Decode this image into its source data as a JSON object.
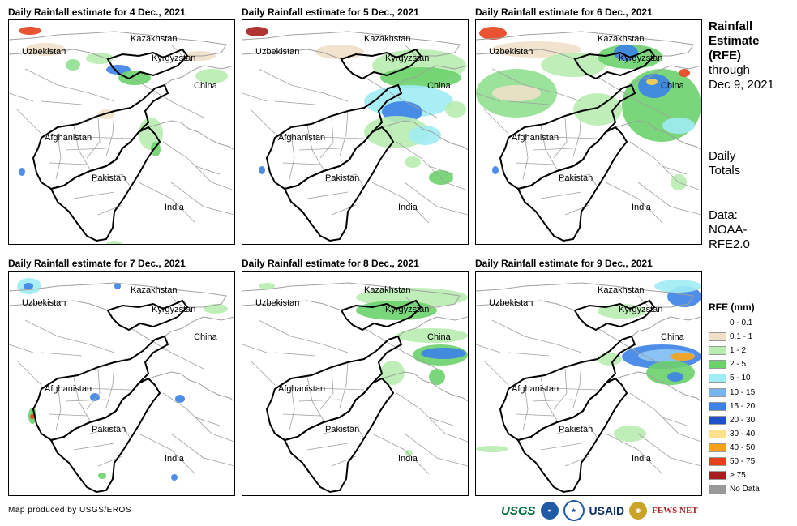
{
  "panels": [
    {
      "title": "Daily Rainfall estimate for 4 Dec., 2021",
      "rain": [
        {
          "x": 12,
          "y": 8,
          "w": 28,
          "h": 10,
          "c": "#e8401c"
        },
        {
          "x": 20,
          "y": 28,
          "w": 50,
          "h": 16,
          "c": "#f0e0c8"
        },
        {
          "x": 70,
          "y": 48,
          "w": 18,
          "h": 14,
          "c": "#90e090"
        },
        {
          "x": 95,
          "y": 40,
          "w": 34,
          "h": 14,
          "c": "#b8ecb0"
        },
        {
          "x": 120,
          "y": 55,
          "w": 30,
          "h": 12,
          "c": "#3c82e6"
        },
        {
          "x": 135,
          "y": 62,
          "w": 40,
          "h": 18,
          "c": "#6cd26c"
        },
        {
          "x": 215,
          "y": 38,
          "w": 40,
          "h": 12,
          "c": "#f0e0c8"
        },
        {
          "x": 230,
          "y": 60,
          "w": 40,
          "h": 18,
          "c": "#b8ecb0"
        },
        {
          "x": 160,
          "y": 120,
          "w": 30,
          "h": 40,
          "c": "#b8ecb0"
        },
        {
          "x": 175,
          "y": 150,
          "w": 12,
          "h": 18,
          "c": "#6cd26c"
        },
        {
          "x": 12,
          "y": 182,
          "w": 8,
          "h": 10,
          "c": "#3c82e6"
        },
        {
          "x": 110,
          "y": 110,
          "w": 20,
          "h": 12,
          "c": "#f0e0c8"
        },
        {
          "x": 120,
          "y": 272,
          "w": 20,
          "h": 10,
          "c": "#b8ecb0"
        }
      ]
    },
    {
      "title": "Daily Rainfall estimate for 5 Dec., 2021",
      "rain": [
        {
          "x": 4,
          "y": 8,
          "w": 28,
          "h": 12,
          "c": "#a81e1e"
        },
        {
          "x": 90,
          "y": 30,
          "w": 60,
          "h": 18,
          "c": "#f0e0c8"
        },
        {
          "x": 160,
          "y": 36,
          "w": 116,
          "h": 40,
          "c": "#b8ecb0"
        },
        {
          "x": 170,
          "y": 58,
          "w": 100,
          "h": 26,
          "c": "#6cd26c"
        },
        {
          "x": 150,
          "y": 80,
          "w": 110,
          "h": 40,
          "c": "#a0ecf4"
        },
        {
          "x": 172,
          "y": 100,
          "w": 50,
          "h": 26,
          "c": "#3c82e6"
        },
        {
          "x": 150,
          "y": 118,
          "w": 80,
          "h": 40,
          "c": "#b8ecb0"
        },
        {
          "x": 205,
          "y": 130,
          "w": 40,
          "h": 24,
          "c": "#a0ecf4"
        },
        {
          "x": 230,
          "y": 185,
          "w": 30,
          "h": 18,
          "c": "#6cd26c"
        },
        {
          "x": 200,
          "y": 168,
          "w": 20,
          "h": 14,
          "c": "#b8ecb0"
        },
        {
          "x": 20,
          "y": 180,
          "w": 8,
          "h": 10,
          "c": "#3c82e6"
        },
        {
          "x": 250,
          "y": 100,
          "w": 26,
          "h": 20,
          "c": "#b8ecb0"
        }
      ]
    },
    {
      "title": "Daily Rainfall estimate for 6 Dec., 2021",
      "rain": [
        {
          "x": 4,
          "y": 8,
          "w": 34,
          "h": 16,
          "c": "#e8401c"
        },
        {
          "x": 20,
          "y": 26,
          "w": 110,
          "h": 20,
          "c": "#f0e0c8"
        },
        {
          "x": 0,
          "y": 60,
          "w": 100,
          "h": 60,
          "c": "#90e090"
        },
        {
          "x": 20,
          "y": 80,
          "w": 60,
          "h": 20,
          "c": "#f0e0c8"
        },
        {
          "x": 80,
          "y": 40,
          "w": 80,
          "h": 30,
          "c": "#b8ecb0"
        },
        {
          "x": 150,
          "y": 30,
          "w": 80,
          "h": 30,
          "c": "#6cd26c"
        },
        {
          "x": 170,
          "y": 30,
          "w": 30,
          "h": 20,
          "c": "#3c82e6"
        },
        {
          "x": 180,
          "y": 60,
          "w": 98,
          "h": 90,
          "c": "#6cd26c"
        },
        {
          "x": 200,
          "y": 66,
          "w": 40,
          "h": 30,
          "c": "#3c82e6"
        },
        {
          "x": 210,
          "y": 72,
          "w": 14,
          "h": 8,
          "c": "#fcd24c"
        },
        {
          "x": 250,
          "y": 60,
          "w": 14,
          "h": 10,
          "c": "#e8401c"
        },
        {
          "x": 230,
          "y": 120,
          "w": 40,
          "h": 20,
          "c": "#a0ecf4"
        },
        {
          "x": 120,
          "y": 90,
          "w": 60,
          "h": 40,
          "c": "#b8ecb0"
        },
        {
          "x": 20,
          "y": 180,
          "w": 8,
          "h": 10,
          "c": "#3c82e6"
        },
        {
          "x": 240,
          "y": 190,
          "w": 20,
          "h": 20,
          "c": "#b8ecb0"
        }
      ]
    },
    {
      "title": "Daily Rainfall estimate for 7 Dec., 2021",
      "rain": [
        {
          "x": 10,
          "y": 8,
          "w": 30,
          "h": 20,
          "c": "#a0ecf4"
        },
        {
          "x": 18,
          "y": 14,
          "w": 12,
          "h": 8,
          "c": "#3c82e6"
        },
        {
          "x": 130,
          "y": 14,
          "w": 8,
          "h": 8,
          "c": "#3c82e6"
        },
        {
          "x": 24,
          "y": 168,
          "w": 10,
          "h": 20,
          "c": "#6cd26c"
        },
        {
          "x": 26,
          "y": 176,
          "w": 6,
          "h": 6,
          "c": "#e8401c"
        },
        {
          "x": 100,
          "y": 150,
          "w": 12,
          "h": 10,
          "c": "#3c82e6"
        },
        {
          "x": 205,
          "y": 152,
          "w": 12,
          "h": 10,
          "c": "#3c82e6"
        },
        {
          "x": 200,
          "y": 250,
          "w": 8,
          "h": 8,
          "c": "#3c82e6"
        },
        {
          "x": 110,
          "y": 248,
          "w": 10,
          "h": 8,
          "c": "#6cd26c"
        },
        {
          "x": 240,
          "y": 40,
          "w": 30,
          "h": 12,
          "c": "#b8ecb0"
        }
      ]
    },
    {
      "title": "Daily Rainfall estimate for 8 Dec., 2021",
      "rain": [
        {
          "x": 140,
          "y": 20,
          "w": 138,
          "h": 24,
          "c": "#b8ecb0"
        },
        {
          "x": 140,
          "y": 36,
          "w": 100,
          "h": 24,
          "c": "#6cd26c"
        },
        {
          "x": 190,
          "y": 70,
          "w": 88,
          "h": 18,
          "c": "#b8ecb0"
        },
        {
          "x": 210,
          "y": 90,
          "w": 68,
          "h": 26,
          "c": "#6cd26c"
        },
        {
          "x": 220,
          "y": 94,
          "w": 56,
          "h": 14,
          "c": "#3c82e6"
        },
        {
          "x": 170,
          "y": 110,
          "w": 30,
          "h": 30,
          "c": "#b8ecb0"
        },
        {
          "x": 230,
          "y": 120,
          "w": 20,
          "h": 20,
          "c": "#6cd26c"
        },
        {
          "x": 200,
          "y": 220,
          "w": 10,
          "h": 8,
          "c": "#b8ecb0"
        },
        {
          "x": 20,
          "y": 14,
          "w": 20,
          "h": 8,
          "c": "#b8ecb0"
        }
      ]
    },
    {
      "title": "Daily Rainfall estimate for 9 Dec., 2021",
      "rain": [
        {
          "x": 236,
          "y": 18,
          "w": 42,
          "h": 26,
          "c": "#3c82e6"
        },
        {
          "x": 220,
          "y": 10,
          "w": 58,
          "h": 16,
          "c": "#a0ecf4"
        },
        {
          "x": 150,
          "y": 40,
          "w": 60,
          "h": 18,
          "c": "#b8ecb0"
        },
        {
          "x": 180,
          "y": 90,
          "w": 98,
          "h": 30,
          "c": "#3c82e6"
        },
        {
          "x": 200,
          "y": 96,
          "w": 70,
          "h": 16,
          "c": "#90c8f4"
        },
        {
          "x": 240,
          "y": 100,
          "w": 30,
          "h": 10,
          "c": "#f6a21a"
        },
        {
          "x": 210,
          "y": 110,
          "w": 60,
          "h": 30,
          "c": "#6cd26c"
        },
        {
          "x": 236,
          "y": 124,
          "w": 20,
          "h": 12,
          "c": "#3c82e6"
        },
        {
          "x": 170,
          "y": 190,
          "w": 40,
          "h": 20,
          "c": "#b8ecb0"
        },
        {
          "x": 0,
          "y": 215,
          "w": 40,
          "h": 8,
          "c": "#b8ecb0"
        },
        {
          "x": 150,
          "y": 100,
          "w": 30,
          "h": 16,
          "c": "#b8ecb0"
        }
      ]
    }
  ],
  "labels": {
    "kazakhstan": "Kazakhstan",
    "uzbekistan": "Uzbekistan",
    "kyrgyzstan": "Kyrgyzstan",
    "china": "China",
    "afghanistan": "Afghanistan",
    "pakistan": "Pakistan",
    "india": "India"
  },
  "side": {
    "rainfall": "Rainfall",
    "estimate": "Estimate",
    "rfe": "(RFE)",
    "through": "through",
    "date": "Dec 9, 2021",
    "daily": "Daily",
    "totals": "Totals",
    "data1": "Data:",
    "data2": "NOAA-",
    "data3": "RFE2.0"
  },
  "legend": {
    "title": "RFE (mm)",
    "items": [
      {
        "label": "0 - 0.1",
        "color": "#ffffff"
      },
      {
        "label": "0.1 - 1",
        "color": "#f0e0c8"
      },
      {
        "label": "1 - 2",
        "color": "#b8ecb0"
      },
      {
        "label": "2 - 5",
        "color": "#6cd26c"
      },
      {
        "label": "5 - 10",
        "color": "#a0ecf4"
      },
      {
        "label": "10 - 15",
        "color": "#78b4f0"
      },
      {
        "label": "15 - 20",
        "color": "#3c82e6"
      },
      {
        "label": "20 - 30",
        "color": "#1e50c8"
      },
      {
        "label": "30 - 40",
        "color": "#fce08c"
      },
      {
        "label": "40 - 50",
        "color": "#f6a21a"
      },
      {
        "label": "50 - 75",
        "color": "#e8401c"
      },
      {
        "label": "> 75",
        "color": "#a81e1e"
      },
      {
        "label": "No Data",
        "color": "#999999"
      }
    ]
  },
  "footer": {
    "credit": "Map produced by USGS/EROS",
    "logo_usgs": "USGS",
    "logo_usaid": "USAID",
    "logo_fews": "FEWS NET"
  }
}
